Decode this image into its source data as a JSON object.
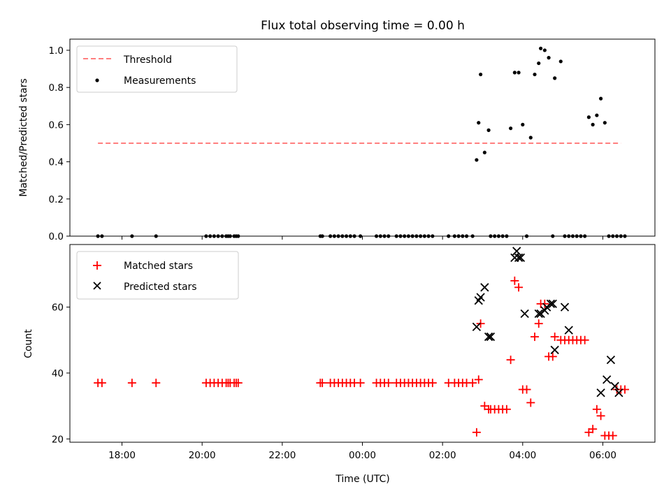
{
  "figure": {
    "title": "Flux total observing time = 0.00 h"
  },
  "chart_data": [
    {
      "type": "scatter",
      "ylabel": "Matched/Predicted stars",
      "xlabel": "",
      "x_unit": "hours (UTC, continuing past midnight)",
      "xlim": [
        16.7,
        31.3
      ],
      "ylim": [
        0,
        1.06
      ],
      "yticks": [
        0.0,
        0.2,
        0.4,
        0.6,
        0.8,
        1.0
      ],
      "ytick_labels": [
        "0.0",
        "0.2",
        "0.4",
        "0.6",
        "0.8",
        "1.0"
      ],
      "legend_position": "top-left",
      "threshold": {
        "name": "Threshold",
        "value": 0.5,
        "x": [
          17.4,
          30.45
        ],
        "color": "#ff7f7f"
      },
      "measurements": {
        "name": "Measurements",
        "color": "#000000",
        "x": [
          17.4,
          17.5,
          18.25,
          18.85,
          20.1,
          20.2,
          20.3,
          20.4,
          20.5,
          20.6,
          20.65,
          20.7,
          20.8,
          20.85,
          20.9,
          22.95,
          23.0,
          23.2,
          23.3,
          23.4,
          23.5,
          23.6,
          23.7,
          23.8,
          23.95,
          24.35,
          24.45,
          24.55,
          24.65,
          24.85,
          24.95,
          25.05,
          25.15,
          25.25,
          25.35,
          25.45,
          25.55,
          25.65,
          25.75,
          26.15,
          26.3,
          26.4,
          26.5,
          26.6,
          26.75,
          26.85,
          26.9,
          26.95,
          27.05,
          27.15,
          27.2,
          27.3,
          27.4,
          27.5,
          27.6,
          27.7,
          27.8,
          27.9,
          28.0,
          28.1,
          28.2,
          28.3,
          28.4,
          28.45,
          28.55,
          28.65,
          28.75,
          28.8,
          28.95,
          29.05,
          29.15,
          29.25,
          29.35,
          29.45,
          29.55,
          29.65,
          29.75,
          29.85,
          29.95,
          30.05,
          30.15,
          30.25,
          30.35,
          30.45,
          30.55
        ],
        "y": [
          0,
          0,
          0,
          0,
          0,
          0,
          0,
          0,
          0,
          0,
          0,
          0,
          0,
          0,
          0,
          0,
          0,
          0,
          0,
          0,
          0,
          0,
          0,
          0,
          0,
          0,
          0,
          0,
          0,
          0,
          0,
          0,
          0,
          0,
          0,
          0,
          0,
          0,
          0,
          0,
          0,
          0,
          0,
          0,
          0,
          0.41,
          0.61,
          0.87,
          0.45,
          0.57,
          0,
          0,
          0,
          0,
          0,
          0.58,
          0.88,
          0.88,
          0.6,
          0,
          0.53,
          0.87,
          0.93,
          1.01,
          1.0,
          0.96,
          0,
          0.85,
          0.94,
          0,
          0,
          0,
          0,
          0,
          0,
          0.64,
          0.6,
          0.65,
          0.74,
          0.61,
          0,
          0,
          0,
          0,
          0
        ]
      }
    },
    {
      "type": "scatter",
      "ylabel": "Count",
      "xlabel": "Time (UTC)",
      "x_unit": "hours (UTC, continuing past midnight)",
      "xlim": [
        16.7,
        31.3
      ],
      "ylim": [
        19,
        79
      ],
      "yticks": [
        20,
        40,
        60
      ],
      "ytick_labels": [
        "20",
        "40",
        "60"
      ],
      "xticks": [
        18,
        20,
        22,
        24,
        26,
        28,
        30
      ],
      "xtick_labels": [
        "18:00",
        "20:00",
        "22:00",
        "00:00",
        "02:00",
        "04:00",
        "06:00"
      ],
      "legend_position": "top-left",
      "series": [
        {
          "name": "Matched stars",
          "marker": "plus",
          "color": "#ff0000",
          "x": [
            17.4,
            17.5,
            18.25,
            18.85,
            20.1,
            20.2,
            20.3,
            20.4,
            20.5,
            20.6,
            20.65,
            20.7,
            20.8,
            20.85,
            20.9,
            22.95,
            23.0,
            23.2,
            23.3,
            23.4,
            23.5,
            23.6,
            23.7,
            23.8,
            23.95,
            24.35,
            24.45,
            24.55,
            24.65,
            24.85,
            24.95,
            25.05,
            25.15,
            25.25,
            25.35,
            25.45,
            25.55,
            25.65,
            25.75,
            26.15,
            26.3,
            26.4,
            26.5,
            26.6,
            26.75,
            26.85,
            26.9,
            26.95,
            27.05,
            27.15,
            27.2,
            27.3,
            27.4,
            27.5,
            27.6,
            27.7,
            27.8,
            27.9,
            28.0,
            28.1,
            28.2,
            28.3,
            28.4,
            28.45,
            28.55,
            28.65,
            28.75,
            28.8,
            28.95,
            29.05,
            29.15,
            29.25,
            29.35,
            29.45,
            29.55,
            29.65,
            29.75,
            29.85,
            29.95,
            30.05,
            30.15,
            30.25,
            30.35,
            30.45,
            30.55
          ],
          "y": [
            37,
            37,
            37,
            37,
            37,
            37,
            37,
            37,
            37,
            37,
            37,
            37,
            37,
            37,
            37,
            37,
            37,
            37,
            37,
            37,
            37,
            37,
            37,
            37,
            37,
            37,
            37,
            37,
            37,
            37,
            37,
            37,
            37,
            37,
            37,
            37,
            37,
            37,
            37,
            37,
            37,
            37,
            37,
            37,
            37,
            22,
            38,
            55,
            30,
            29,
            29,
            29,
            29,
            29,
            29,
            44,
            68,
            66,
            35,
            35,
            31,
            51,
            55,
            61,
            61,
            45,
            45,
            51,
            50,
            50,
            50,
            50,
            50,
            50,
            50,
            22,
            23,
            29,
            27,
            21,
            21,
            21,
            35,
            35,
            35
          ]
        },
        {
          "name": "Predicted stars",
          "marker": "x",
          "color": "#000000",
          "x": [
            26.85,
            26.9,
            26.95,
            27.05,
            27.15,
            27.2,
            27.8,
            27.85,
            27.9,
            27.95,
            28.05,
            28.4,
            28.45,
            28.55,
            28.6,
            28.7,
            28.75,
            28.8,
            29.05,
            29.15,
            29.95,
            30.1,
            30.2,
            30.3,
            30.4
          ],
          "y": [
            54,
            62,
            63,
            66,
            51,
            51,
            75,
            77,
            75,
            75,
            58,
            58,
            58,
            59,
            60,
            61,
            61,
            47,
            60,
            53,
            34,
            38,
            44,
            36,
            34
          ]
        }
      ]
    }
  ]
}
